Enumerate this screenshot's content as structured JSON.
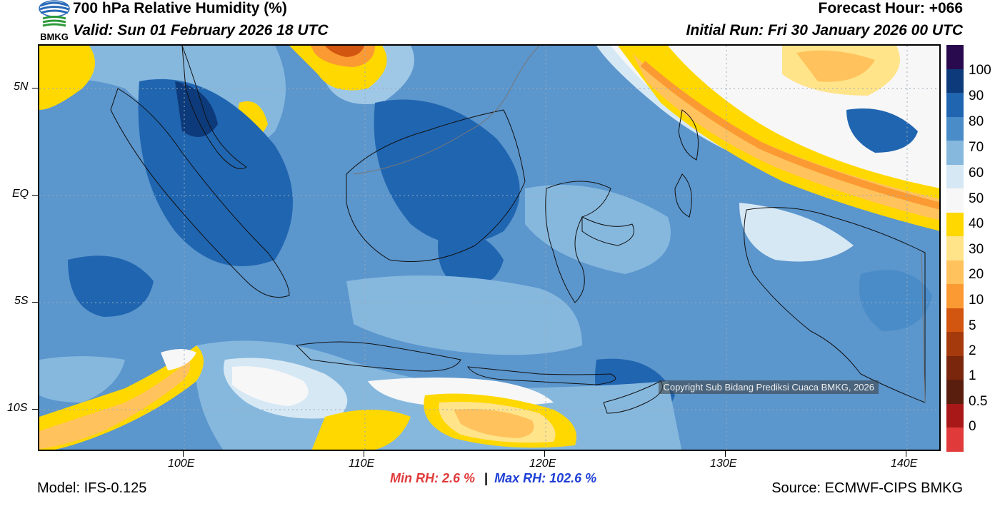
{
  "header": {
    "title": "700 hPa Relative Humidity (%)",
    "valid": "Valid: Sun 01 February 2026 18 UTC",
    "forecast_hour": "Forecast Hour: +066",
    "initial_run": "Initial Run: Fri 30 January 2026 00 UTC"
  },
  "logo": {
    "text": "BMKG"
  },
  "map": {
    "lat_labels": [
      "5N",
      "EQ",
      "5S",
      "10S"
    ],
    "lon_labels": [
      "100E",
      "110E",
      "120E",
      "130E",
      "140E"
    ],
    "copyright": "Copyright Sub Bidang Prediksi Cuaca BMKG, 2026"
  },
  "colorbar": {
    "labels": [
      "100",
      "90",
      "80",
      "70",
      "60",
      "50",
      "40",
      "30",
      "20",
      "10",
      "5",
      "2",
      "1",
      "0.5",
      "0"
    ],
    "colors": [
      "#2a0a4e",
      "#0d3a7a",
      "#2065b0",
      "#4a8cc8",
      "#86b8de",
      "#d6e8f4",
      "#f7f7f7",
      "#ffd800",
      "#ffe48a",
      "#ffc25c",
      "#fb9a32",
      "#d2560f",
      "#a53a0c",
      "#7a260c",
      "#5a1e0e",
      "#a81818",
      "#e03a3a"
    ]
  },
  "stats": {
    "min_rh": "Min RH:   2.6 %",
    "separator": "|",
    "max_rh": "Max RH: 102.6 %"
  },
  "footer": {
    "model": "Model: IFS-0.125",
    "source": "Source: ECMWF-CIPS BMKG"
  }
}
